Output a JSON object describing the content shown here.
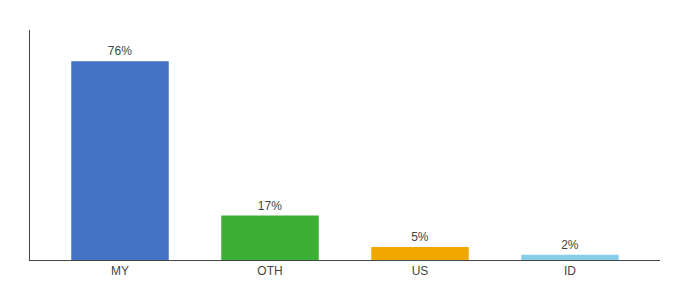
{
  "chart_data": {
    "type": "bar",
    "categories": [
      "MY",
      "OTH",
      "US",
      "ID"
    ],
    "values": [
      76,
      17,
      5,
      2
    ],
    "value_labels": [
      "76%",
      "17%",
      "5%",
      "2%"
    ],
    "colors": [
      "#4472c4",
      "#3cb034",
      "#f0a800",
      "#87ceeb"
    ],
    "ylim": [
      0,
      88
    ],
    "grid": false,
    "data_labels": true,
    "tick_labels": "x"
  }
}
